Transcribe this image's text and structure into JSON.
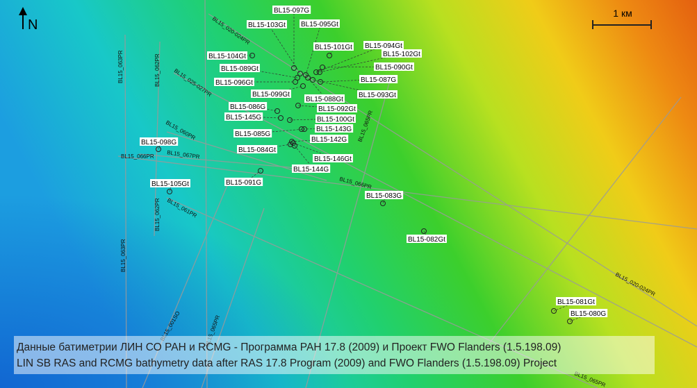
{
  "north": "N",
  "scale": "1 км",
  "stations": [
    "BL15-097G",
    "BL15-103Gt",
    "BL15-095Gt",
    "BL15-101Gt",
    "BL15-094Gt",
    "BL15-102Gt",
    "BL15-104Gt",
    "BL15-089Gt",
    "BL15-090Gt",
    "BL15-087G",
    "BL15-096Gt",
    "BL15-099Gt",
    "BL15-093Gt",
    "BL15-088Gt",
    "BL15-086G",
    "BL15-092Gt",
    "BL15-145G",
    "BL15-100Gt",
    "BL15-143G",
    "BL15-085G",
    "BL15-142G",
    "BL15-098G",
    "BL15-084Gt",
    "BL15-146Gt",
    "BL15-144G",
    "BL15-091G",
    "BL15-105Gt",
    "BL15-083G",
    "BL15-082Gt",
    "BL15-081Gt",
    "BL15-080G"
  ],
  "profiles": [
    "BL15_063PR",
    "BL15_062PR",
    "BL15_020-024PR",
    "BL15_025-027PR",
    "BL15_060PR",
    "BL15_067PR",
    "BL15_066PR",
    "BL15_065PR",
    "BL15_066PR",
    "BL15_062PR",
    "BL15_061PR",
    "BL15_063PR",
    "BL15_001SO",
    "BL15_065PR",
    "BL15_020-024PR",
    "BL15_065PR"
  ],
  "caption": [
    "Данные батиметрии ЛИН СО РАН и RCMG - Программа РАН 17.8 (2009) и Проект FWO Flanders (1.5.198.09)",
    "LIN SB RAS and RCMG bathymetry data after RAS 17.8 Program (2009) and FWO Flanders (1.5.198.09) Project"
  ]
}
